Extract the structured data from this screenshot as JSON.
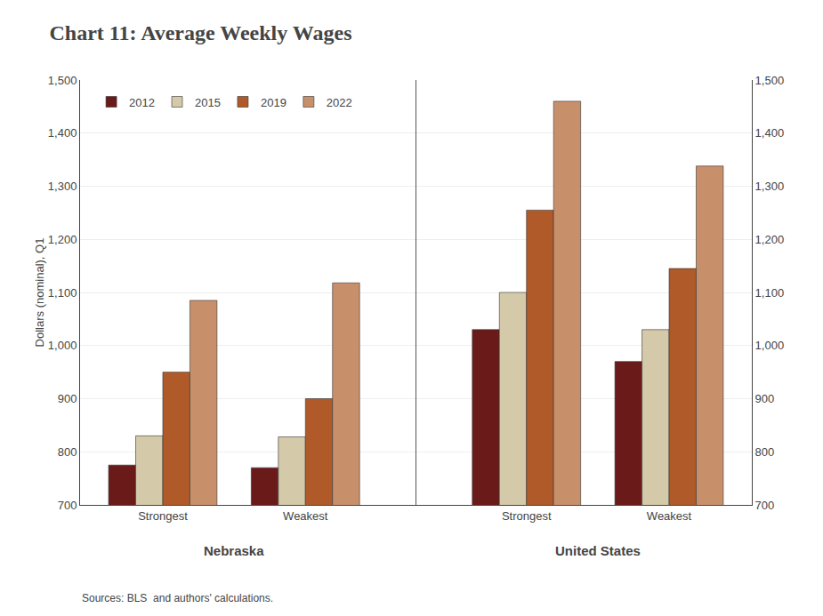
{
  "chart_data": {
    "type": "bar",
    "title": "Chart 11: Average Weekly Wages",
    "ylabel": "Dollars (nominal), Q1",
    "source": "Sources: BLS  and authors' calculations.",
    "categories": [
      "Strongest",
      "Weakest",
      "Strongest",
      "Weakest"
    ],
    "annotations": [
      "Nebraska",
      "United States"
    ],
    "series": [
      {
        "name": "2012",
        "color": "#6B1A1A",
        "values": [
          775,
          770,
          1030,
          970
        ]
      },
      {
        "name": "2015",
        "color": "#D4C9A8",
        "values": [
          830,
          828,
          1100,
          1030
        ]
      },
      {
        "name": "2019",
        "color": "#B05A2A",
        "values": [
          950,
          900,
          1255,
          1145
        ]
      },
      {
        "name": "2022",
        "color": "#C8906A",
        "values": [
          1085,
          1118,
          1460,
          1338
        ]
      }
    ],
    "ylim": [
      700,
      1500
    ],
    "yticks": [
      700,
      800,
      900,
      {
        "value": 1000,
        "label": "1,000"
      },
      {
        "value": 1100,
        "label": "1,100"
      },
      {
        "value": 1200,
        "label": "1,200"
      },
      {
        "value": 1300,
        "label": "1,300"
      },
      {
        "value": 1400,
        "label": "1,400"
      },
      {
        "value": 1500,
        "label": "1,500"
      }
    ],
    "y2lim": [
      700,
      1500
    ],
    "y2ticks": [
      700,
      800,
      900,
      {
        "value": 1000,
        "label": "1,000"
      },
      {
        "value": 1100,
        "label": "1,100"
      },
      {
        "value": 1200,
        "label": "1,200"
      },
      {
        "value": 1300,
        "label": "1,300"
      },
      {
        "value": 1400,
        "label": "1,400"
      },
      {
        "value": 1500,
        "label": "1,500"
      }
    ],
    "grid": true,
    "legend": "upper left"
  }
}
